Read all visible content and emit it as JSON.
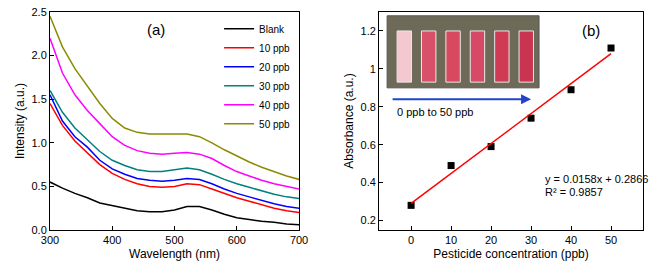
{
  "chart_data": [
    {
      "type": "line",
      "x_label": "Wavelength (nm)",
      "y_label": "Intensity (a.u.)",
      "x": [
        300,
        320,
        340,
        360,
        380,
        400,
        420,
        440,
        460,
        480,
        500,
        520,
        540,
        560,
        580,
        600,
        620,
        640,
        660,
        680,
        700
      ],
      "series": [
        {
          "name": "Blank",
          "color": "#000000",
          "values": [
            0.55,
            0.48,
            0.42,
            0.37,
            0.31,
            0.28,
            0.25,
            0.22,
            0.21,
            0.21,
            0.23,
            0.27,
            0.27,
            0.23,
            0.18,
            0.14,
            0.12,
            0.1,
            0.09,
            0.07,
            0.06
          ]
        },
        {
          "name": "10 ppb",
          "color": "#ff0000",
          "values": [
            1.45,
            1.2,
            1.02,
            0.88,
            0.75,
            0.65,
            0.58,
            0.53,
            0.5,
            0.49,
            0.5,
            0.53,
            0.52,
            0.47,
            0.42,
            0.37,
            0.33,
            0.29,
            0.25,
            0.22,
            0.2
          ]
        },
        {
          "name": "20 ppb",
          "color": "#0000ff",
          "values": [
            1.55,
            1.25,
            1.07,
            0.95,
            0.8,
            0.7,
            0.64,
            0.59,
            0.57,
            0.56,
            0.57,
            0.59,
            0.58,
            0.53,
            0.47,
            0.42,
            0.38,
            0.34,
            0.3,
            0.27,
            0.25
          ]
        },
        {
          "name": "30 ppb",
          "color": "#008080",
          "values": [
            1.6,
            1.35,
            1.17,
            1.03,
            0.9,
            0.8,
            0.74,
            0.69,
            0.67,
            0.67,
            0.69,
            0.71,
            0.69,
            0.64,
            0.58,
            0.53,
            0.49,
            0.45,
            0.41,
            0.38,
            0.36
          ]
        },
        {
          "name": "40 ppb",
          "color": "#ff00ff",
          "values": [
            2.2,
            1.8,
            1.55,
            1.37,
            1.22,
            1.07,
            0.97,
            0.91,
            0.88,
            0.87,
            0.88,
            0.89,
            0.87,
            0.82,
            0.74,
            0.67,
            0.62,
            0.57,
            0.53,
            0.5,
            0.47
          ]
        },
        {
          "name": "50 ppb",
          "color": "#8b8b00",
          "values": [
            2.45,
            2.1,
            1.85,
            1.65,
            1.45,
            1.28,
            1.17,
            1.12,
            1.1,
            1.1,
            1.1,
            1.1,
            1.07,
            1.0,
            0.92,
            0.85,
            0.78,
            0.72,
            0.67,
            0.62,
            0.58
          ]
        }
      ],
      "xlim": [
        300,
        700
      ],
      "xticks": [
        300,
        400,
        500,
        600,
        700
      ],
      "ylim": [
        0,
        2.5
      ],
      "yticks": [
        {
          "value": 0,
          "label": "0.0"
        },
        {
          "value": 0.5,
          "label": "0.5"
        },
        {
          "value": 1,
          "label": "1.0"
        },
        {
          "value": 1.5,
          "label": "1.5"
        },
        {
          "value": 2,
          "label": "2.0"
        },
        {
          "value": 2.5,
          "label": "2.5"
        }
      ],
      "grid": false,
      "legend": "upper right",
      "annotations": [
        "(a)"
      ]
    },
    {
      "type": "scatter",
      "x_label": "Pesticide concentration (ppb)",
      "y_label": "Absorbance (a.u.)",
      "series": [
        {
          "type": "scatter",
          "marker": "square",
          "color": "#000000",
          "x": [
            0,
            10,
            20,
            30,
            40,
            50
          ],
          "values": [
            0.28,
            0.49,
            0.59,
            0.74,
            0.89,
            1.11
          ]
        },
        {
          "type": "line",
          "line_style": "solid",
          "color": "#ff0000",
          "x": [
            0,
            50
          ],
          "values": [
            0.29,
            1.08
          ]
        }
      ],
      "xlim": [
        -8,
        58
      ],
      "xticks": [
        0,
        10,
        20,
        30,
        40,
        50
      ],
      "ylim": [
        0.15,
        1.3
      ],
      "yticks": [
        0.2,
        0.4,
        0.6,
        0.8,
        1,
        1.2
      ],
      "grid": false,
      "annotations": [
        "(b)",
        "y = 0.0158x + 0.2866",
        "R² = 0.9857",
        "0 ppb to 50 ppb"
      ]
    }
  ]
}
